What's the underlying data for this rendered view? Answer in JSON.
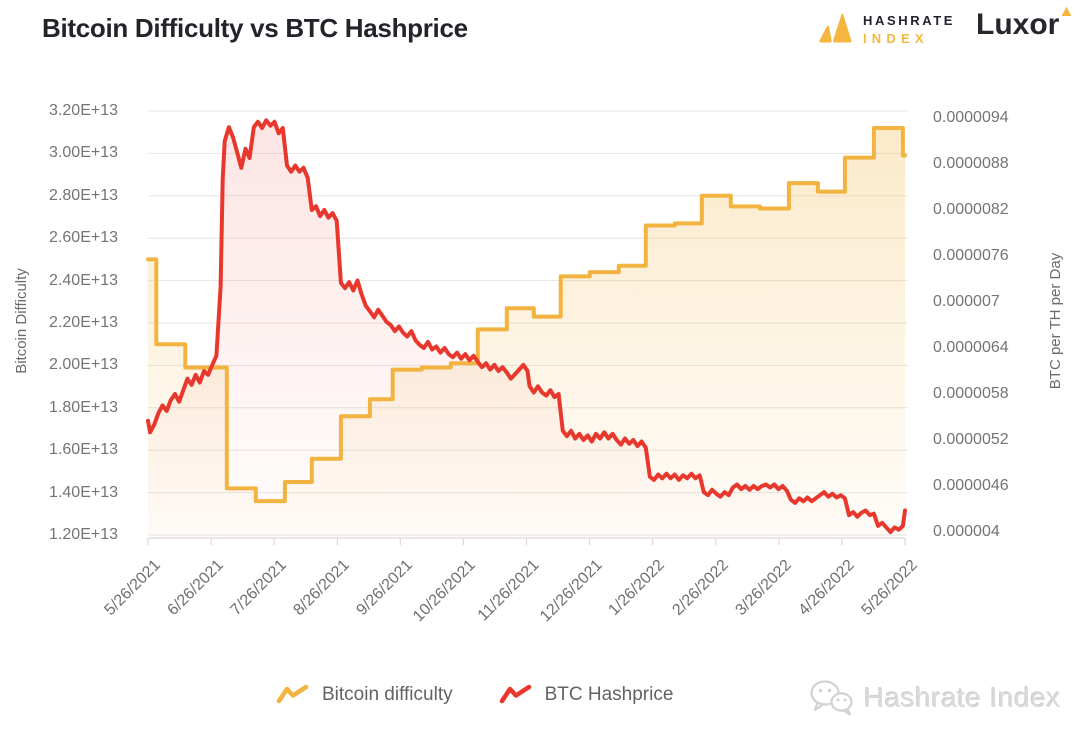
{
  "header": {
    "title": "Bitcoin Difficulty vs BTC Hashprice"
  },
  "branding": {
    "hashrate_line1": "HASHRATE",
    "hashrate_line2": "INDEX",
    "luxor": "Luxor"
  },
  "watermark": {
    "text": "Hashrate Index"
  },
  "legend": {
    "items": [
      {
        "label": "Bitcoin difficulty",
        "color": "#F2B340"
      },
      {
        "label": "BTC Hashprice",
        "color": "#E8382E"
      }
    ]
  },
  "colors": {
    "series_yellow": "#F2B340",
    "series_red": "#E8382E",
    "grid": "#e6e6e6",
    "axis_line": "#e0d8d8",
    "tick_text": "#747474",
    "brand_yellow": "#F4B63F",
    "watermark_gray": "#d2d2d2"
  },
  "chart_data": {
    "type": "line",
    "title": "Bitcoin Difficulty vs BTC Hashprice",
    "grid": "horizontal",
    "legend_position": "bottom",
    "x_axis": {
      "tick_labels": [
        "5/26/2021",
        "6/26/2021",
        "7/26/2021",
        "8/26/2021",
        "9/26/2021",
        "10/26/2021",
        "11/26/2021",
        "12/26/2021",
        "1/26/2022",
        "2/26/2022",
        "3/26/2022",
        "4/26/2022",
        "5/26/2022"
      ],
      "range": [
        "2021-05-26",
        "2022-05-26"
      ]
    },
    "left_axis": {
      "label": "Bitcoin Difficulty",
      "tick_labels": [
        "3.20E+13",
        "3.00E+13",
        "2.80E+13",
        "2.60E+13",
        "2.40E+13",
        "2.20E+13",
        "2.00E+13",
        "1.80E+13",
        "1.60E+13",
        "1.40E+13",
        "1.20E+13"
      ],
      "min": 12000000000000.0,
      "max": 32000000000000.0
    },
    "right_axis": {
      "label": "BTC per TH per Day",
      "tick_labels": [
        "0.0000094",
        "0.0000088",
        "0.0000082",
        "0.0000076",
        "0.000007",
        "0.0000064",
        "0.0000058",
        "0.0000052",
        "0.0000046",
        "0.000004"
      ],
      "min": 4e-06,
      "max": 9.4e-06
    },
    "series": [
      {
        "name": "Bitcoin difficulty",
        "type": "step-area",
        "axis": "left",
        "color": "#F2B340",
        "points": [
          [
            "2021-05-26",
            25000000000000.0
          ],
          [
            "2021-05-30",
            21000000000000.0
          ],
          [
            "2021-06-13",
            19900000000000.0
          ],
          [
            "2021-07-03",
            14200000000000.0
          ],
          [
            "2021-07-17",
            13600000000000.0
          ],
          [
            "2021-07-31",
            14500000000000.0
          ],
          [
            "2021-08-13",
            15600000000000.0
          ],
          [
            "2021-08-27",
            17600000000000.0
          ],
          [
            "2021-09-10",
            18400000000000.0
          ],
          [
            "2021-09-21",
            19800000000000.0
          ],
          [
            "2021-10-05",
            19900000000000.0
          ],
          [
            "2021-10-19",
            20100000000000.0
          ],
          [
            "2021-11-01",
            21700000000000.0
          ],
          [
            "2021-11-15",
            22700000000000.0
          ],
          [
            "2021-11-28",
            22300000000000.0
          ],
          [
            "2021-12-11",
            24200000000000.0
          ],
          [
            "2021-12-25",
            24400000000000.0
          ],
          [
            "2022-01-08",
            24700000000000.0
          ],
          [
            "2022-01-21",
            26600000000000.0
          ],
          [
            "2022-02-04",
            26700000000000.0
          ],
          [
            "2022-02-17",
            28000000000000.0
          ],
          [
            "2022-03-03",
            27500000000000.0
          ],
          [
            "2022-03-17",
            27400000000000.0
          ],
          [
            "2022-03-31",
            28600000000000.0
          ],
          [
            "2022-04-14",
            28200000000000.0
          ],
          [
            "2022-04-27",
            29800000000000.0
          ],
          [
            "2022-05-11",
            31200000000000.0
          ],
          [
            "2022-05-25",
            29900000000000.0
          ]
        ]
      },
      {
        "name": "BTC Hashprice",
        "type": "line-area",
        "axis": "right",
        "color": "#E8382E",
        "points": [
          [
            "2021-05-26",
            5.45e-06
          ],
          [
            "2021-05-27",
            5.3e-06
          ],
          [
            "2021-05-29",
            5.4e-06
          ],
          [
            "2021-05-31",
            5.55e-06
          ],
          [
            "2021-06-02",
            5.65e-06
          ],
          [
            "2021-06-04",
            5.58e-06
          ],
          [
            "2021-06-06",
            5.72e-06
          ],
          [
            "2021-06-08",
            5.8e-06
          ],
          [
            "2021-06-10",
            5.7e-06
          ],
          [
            "2021-06-12",
            5.85e-06
          ],
          [
            "2021-06-14",
            6e-06
          ],
          [
            "2021-06-16",
            5.92e-06
          ],
          [
            "2021-06-18",
            6.05e-06
          ],
          [
            "2021-06-20",
            5.95e-06
          ],
          [
            "2021-06-22",
            6.1e-06
          ],
          [
            "2021-06-24",
            6.05e-06
          ],
          [
            "2021-06-26",
            6.18e-06
          ],
          [
            "2021-06-28",
            6.3e-06
          ],
          [
            "2021-06-30",
            7.2e-06
          ],
          [
            "2021-07-01",
            8.6e-06
          ],
          [
            "2021-07-02",
            9.1e-06
          ],
          [
            "2021-07-04",
            9.28e-06
          ],
          [
            "2021-07-06",
            9.15e-06
          ],
          [
            "2021-07-08",
            8.95e-06
          ],
          [
            "2021-07-10",
            8.75e-06
          ],
          [
            "2021-07-12",
            9e-06
          ],
          [
            "2021-07-14",
            8.88e-06
          ],
          [
            "2021-07-16",
            9.28e-06
          ],
          [
            "2021-07-18",
            9.35e-06
          ],
          [
            "2021-07-20",
            9.27e-06
          ],
          [
            "2021-07-22",
            9.37e-06
          ],
          [
            "2021-07-24",
            9.3e-06
          ],
          [
            "2021-07-26",
            9.35e-06
          ],
          [
            "2021-07-28",
            9.2e-06
          ],
          [
            "2021-07-30",
            9.27e-06
          ],
          [
            "2021-08-01",
            8.78e-06
          ],
          [
            "2021-08-03",
            8.7e-06
          ],
          [
            "2021-08-05",
            8.78e-06
          ],
          [
            "2021-08-07",
            8.7e-06
          ],
          [
            "2021-08-09",
            8.75e-06
          ],
          [
            "2021-08-11",
            8.62e-06
          ],
          [
            "2021-08-13",
            8.2e-06
          ],
          [
            "2021-08-15",
            8.25e-06
          ],
          [
            "2021-08-17",
            8.12e-06
          ],
          [
            "2021-08-19",
            8.2e-06
          ],
          [
            "2021-08-21",
            8.1e-06
          ],
          [
            "2021-08-23",
            8.16e-06
          ],
          [
            "2021-08-25",
            8.06e-06
          ],
          [
            "2021-08-27",
            7.25e-06
          ],
          [
            "2021-08-29",
            7.18e-06
          ],
          [
            "2021-08-31",
            7.26e-06
          ],
          [
            "2021-09-02",
            7.15e-06
          ],
          [
            "2021-09-04",
            7.28e-06
          ],
          [
            "2021-09-06",
            7.1e-06
          ],
          [
            "2021-09-08",
            6.95e-06
          ],
          [
            "2021-09-10",
            6.88e-06
          ],
          [
            "2021-09-12",
            6.8e-06
          ],
          [
            "2021-09-14",
            6.9e-06
          ],
          [
            "2021-09-16",
            6.82e-06
          ],
          [
            "2021-09-18",
            6.74e-06
          ],
          [
            "2021-09-20",
            6.7e-06
          ],
          [
            "2021-09-22",
            6.62e-06
          ],
          [
            "2021-09-24",
            6.68e-06
          ],
          [
            "2021-09-26",
            6.6e-06
          ],
          [
            "2021-09-28",
            6.55e-06
          ],
          [
            "2021-09-30",
            6.62e-06
          ],
          [
            "2021-10-02",
            6.5e-06
          ],
          [
            "2021-10-04",
            6.44e-06
          ],
          [
            "2021-10-06",
            6.4e-06
          ],
          [
            "2021-10-08",
            6.48e-06
          ],
          [
            "2021-10-10",
            6.38e-06
          ],
          [
            "2021-10-12",
            6.42e-06
          ],
          [
            "2021-10-14",
            6.34e-06
          ],
          [
            "2021-10-16",
            6.4e-06
          ],
          [
            "2021-10-18",
            6.32e-06
          ],
          [
            "2021-10-20",
            6.28e-06
          ],
          [
            "2021-10-22",
            6.34e-06
          ],
          [
            "2021-10-24",
            6.26e-06
          ],
          [
            "2021-10-26",
            6.32e-06
          ],
          [
            "2021-10-28",
            6.24e-06
          ],
          [
            "2021-10-30",
            6.3e-06
          ],
          [
            "2021-11-01",
            6.22e-06
          ],
          [
            "2021-11-03",
            6.15e-06
          ],
          [
            "2021-11-05",
            6.2e-06
          ],
          [
            "2021-11-07",
            6.12e-06
          ],
          [
            "2021-11-09",
            6.18e-06
          ],
          [
            "2021-11-11",
            6.1e-06
          ],
          [
            "2021-11-13",
            6.15e-06
          ],
          [
            "2021-11-15",
            6.08e-06
          ],
          [
            "2021-11-17",
            6e-06
          ],
          [
            "2021-11-19",
            6.06e-06
          ],
          [
            "2021-11-21",
            6.12e-06
          ],
          [
            "2021-11-23",
            6.18e-06
          ],
          [
            "2021-11-25",
            6.1e-06
          ],
          [
            "2021-11-26",
            5.9e-06
          ],
          [
            "2021-11-28",
            5.82e-06
          ],
          [
            "2021-11-30",
            5.9e-06
          ],
          [
            "2021-12-02",
            5.82e-06
          ],
          [
            "2021-12-04",
            5.78e-06
          ],
          [
            "2021-12-06",
            5.85e-06
          ],
          [
            "2021-12-08",
            5.76e-06
          ],
          [
            "2021-12-10",
            5.8e-06
          ],
          [
            "2021-12-12",
            5.32e-06
          ],
          [
            "2021-12-14",
            5.25e-06
          ],
          [
            "2021-12-16",
            5.32e-06
          ],
          [
            "2021-12-18",
            5.22e-06
          ],
          [
            "2021-12-20",
            5.28e-06
          ],
          [
            "2021-12-22",
            5.2e-06
          ],
          [
            "2021-12-24",
            5.26e-06
          ],
          [
            "2021-12-26",
            5.18e-06
          ],
          [
            "2021-12-28",
            5.28e-06
          ],
          [
            "2021-12-30",
            5.22e-06
          ],
          [
            "2022-01-01",
            5.3e-06
          ],
          [
            "2022-01-03",
            5.22e-06
          ],
          [
            "2022-01-05",
            5.28e-06
          ],
          [
            "2022-01-07",
            5.2e-06
          ],
          [
            "2022-01-09",
            5.14e-06
          ],
          [
            "2022-01-11",
            5.22e-06
          ],
          [
            "2022-01-13",
            5.15e-06
          ],
          [
            "2022-01-15",
            5.2e-06
          ],
          [
            "2022-01-17",
            5.12e-06
          ],
          [
            "2022-01-19",
            5.18e-06
          ],
          [
            "2022-01-21",
            5.1e-06
          ],
          [
            "2022-01-23",
            4.72e-06
          ],
          [
            "2022-01-25",
            4.68e-06
          ],
          [
            "2022-01-27",
            4.75e-06
          ],
          [
            "2022-01-29",
            4.7e-06
          ],
          [
            "2022-01-31",
            4.76e-06
          ],
          [
            "2022-02-02",
            4.7e-06
          ],
          [
            "2022-02-04",
            4.75e-06
          ],
          [
            "2022-02-06",
            4.68e-06
          ],
          [
            "2022-02-08",
            4.74e-06
          ],
          [
            "2022-02-10",
            4.7e-06
          ],
          [
            "2022-02-12",
            4.76e-06
          ],
          [
            "2022-02-14",
            4.7e-06
          ],
          [
            "2022-02-16",
            4.74e-06
          ],
          [
            "2022-02-18",
            4.52e-06
          ],
          [
            "2022-02-20",
            4.48e-06
          ],
          [
            "2022-02-22",
            4.55e-06
          ],
          [
            "2022-02-24",
            4.5e-06
          ],
          [
            "2022-02-26",
            4.46e-06
          ],
          [
            "2022-02-28",
            4.52e-06
          ],
          [
            "2022-03-02",
            4.48e-06
          ],
          [
            "2022-03-04",
            4.58e-06
          ],
          [
            "2022-03-06",
            4.62e-06
          ],
          [
            "2022-03-08",
            4.56e-06
          ],
          [
            "2022-03-10",
            4.6e-06
          ],
          [
            "2022-03-12",
            4.55e-06
          ],
          [
            "2022-03-14",
            4.6e-06
          ],
          [
            "2022-03-16",
            4.56e-06
          ],
          [
            "2022-03-18",
            4.6e-06
          ],
          [
            "2022-03-20",
            4.62e-06
          ],
          [
            "2022-03-22",
            4.58e-06
          ],
          [
            "2022-03-24",
            4.62e-06
          ],
          [
            "2022-03-26",
            4.56e-06
          ],
          [
            "2022-03-28",
            4.6e-06
          ],
          [
            "2022-03-30",
            4.54e-06
          ],
          [
            "2022-04-01",
            4.42e-06
          ],
          [
            "2022-04-03",
            4.38e-06
          ],
          [
            "2022-04-05",
            4.44e-06
          ],
          [
            "2022-04-07",
            4.4e-06
          ],
          [
            "2022-04-09",
            4.45e-06
          ],
          [
            "2022-04-11",
            4.4e-06
          ],
          [
            "2022-04-13",
            4.44e-06
          ],
          [
            "2022-04-15",
            4.48e-06
          ],
          [
            "2022-04-17",
            4.52e-06
          ],
          [
            "2022-04-19",
            4.46e-06
          ],
          [
            "2022-04-21",
            4.5e-06
          ],
          [
            "2022-04-23",
            4.45e-06
          ],
          [
            "2022-04-25",
            4.48e-06
          ],
          [
            "2022-04-27",
            4.44e-06
          ],
          [
            "2022-04-29",
            4.22e-06
          ],
          [
            "2022-05-01",
            4.26e-06
          ],
          [
            "2022-05-03",
            4.2e-06
          ],
          [
            "2022-05-05",
            4.25e-06
          ],
          [
            "2022-05-07",
            4.28e-06
          ],
          [
            "2022-05-09",
            4.22e-06
          ],
          [
            "2022-05-11",
            4.24e-06
          ],
          [
            "2022-05-13",
            4.08e-06
          ],
          [
            "2022-05-15",
            4.12e-06
          ],
          [
            "2022-05-17",
            4.06e-06
          ],
          [
            "2022-05-19",
            4e-06
          ],
          [
            "2022-05-21",
            4.06e-06
          ],
          [
            "2022-05-23",
            4.03e-06
          ],
          [
            "2022-05-25",
            4.08e-06
          ],
          [
            "2022-05-26",
            4.28e-06
          ]
        ]
      }
    ]
  }
}
